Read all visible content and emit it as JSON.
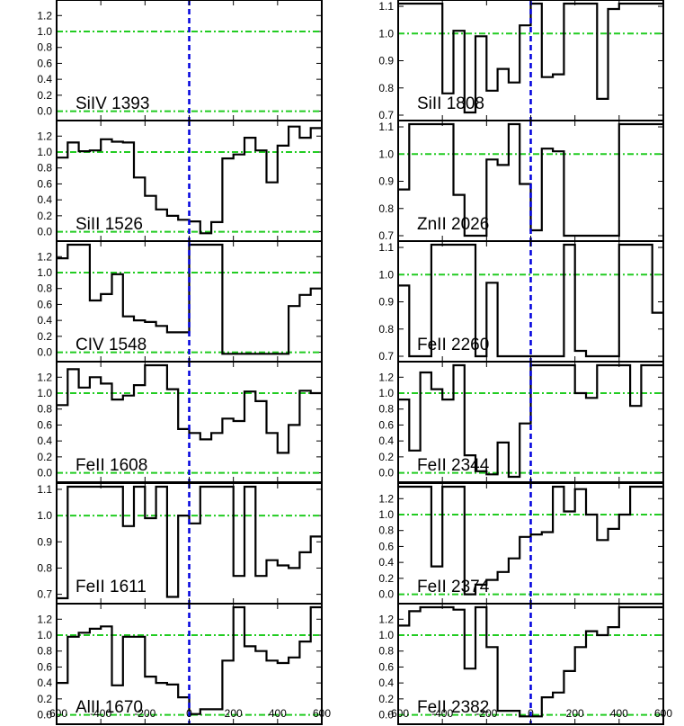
{
  "figure": {
    "x_tick_labels": [
      "-600",
      "-400",
      "-200",
      "0",
      "200",
      "400",
      "600"
    ],
    "colors": {
      "spectrum": "#000000",
      "reference_lines": "#22cc22",
      "zero_velocity_line": "#0000dd",
      "frame": "#000000"
    },
    "line_styles": {
      "reference_lines": "dash-dot",
      "zero_velocity_line": "dashed"
    }
  },
  "chart_data": [
    {
      "type": "line",
      "step": true,
      "label": "SiIV 1393",
      "xlim": [
        -600,
        600
      ],
      "ylim": [
        -0.05,
        1.35
      ],
      "yticks": [
        "0.0",
        "0.2",
        "0.4",
        "0.6",
        "0.8",
        "1.0",
        "1.2"
      ],
      "ref_lines": [
        0.0,
        1.0
      ],
      "x": [],
      "values": []
    },
    {
      "type": "line",
      "step": true,
      "label": "SiII 1526",
      "xlim": [
        -600,
        600
      ],
      "ylim": [
        -0.05,
        1.35
      ],
      "yticks": [
        "0.0",
        "0.2",
        "0.4",
        "0.6",
        "0.8",
        "1.0",
        "1.2"
      ],
      "ref_lines": [
        0.0,
        1.0
      ],
      "x": [
        -600,
        -550,
        -500,
        -450,
        -400,
        -350,
        -300,
        -250,
        -200,
        -150,
        -100,
        -50,
        0,
        50,
        100,
        150,
        200,
        250,
        300,
        350,
        400,
        450,
        500,
        550
      ],
      "values": [
        0.93,
        1.12,
        1.01,
        1.02,
        1.16,
        1.13,
        1.12,
        0.68,
        0.45,
        0.28,
        0.2,
        0.15,
        0.13,
        -0.02,
        0.12,
        0.92,
        0.97,
        1.18,
        1.02,
        0.62,
        1.08,
        1.32,
        1.18,
        1.3
      ]
    },
    {
      "type": "line",
      "step": true,
      "label": "CIV 1548",
      "xlim": [
        -600,
        600
      ],
      "ylim": [
        -0.05,
        1.35
      ],
      "yticks": [
        "0.0",
        "0.2",
        "0.4",
        "0.6",
        "0.8",
        "1.0",
        "1.2"
      ],
      "ref_lines": [
        0.0,
        1.0
      ],
      "x": [
        -600,
        -550,
        -500,
        -450,
        -400,
        -350,
        -300,
        -250,
        -200,
        -150,
        -100,
        -50,
        0,
        50,
        100,
        150,
        200,
        250,
        300,
        350,
        400,
        450,
        500,
        550
      ],
      "values": [
        1.18,
        1.35,
        1.35,
        0.65,
        0.73,
        0.98,
        0.45,
        0.4,
        0.38,
        0.33,
        0.25,
        0.25,
        1.35,
        1.35,
        1.35,
        -0.02,
        -0.02,
        -0.02,
        -0.02,
        -0.02,
        -0.02,
        0.58,
        0.72,
        0.8
      ]
    },
    {
      "type": "line",
      "step": true,
      "label": "FeII 1608",
      "xlim": [
        -600,
        600
      ],
      "ylim": [
        -0.05,
        1.35
      ],
      "yticks": [
        "0.0",
        "0.2",
        "0.4",
        "0.6",
        "0.8",
        "1.0",
        "1.2"
      ],
      "ref_lines": [
        0.0,
        1.0
      ],
      "x": [
        -600,
        -550,
        -500,
        -450,
        -400,
        -350,
        -300,
        -250,
        -200,
        -150,
        -100,
        -50,
        0,
        50,
        100,
        150,
        200,
        250,
        300,
        350,
        400,
        450,
        500,
        550
      ],
      "values": [
        0.85,
        1.3,
        1.07,
        1.2,
        1.12,
        0.92,
        0.97,
        1.1,
        1.35,
        1.35,
        1.05,
        0.55,
        0.5,
        0.42,
        0.5,
        0.68,
        0.65,
        1.02,
        0.9,
        0.5,
        0.25,
        0.6,
        1.03,
        1.0
      ]
    },
    {
      "type": "line",
      "step": true,
      "label": "FeII 1611",
      "xlim": [
        -600,
        600
      ],
      "ylim": [
        0.685,
        1.11
      ],
      "yticks": [
        "0.7",
        "0.8",
        "0.9",
        "1.0",
        "1.1"
      ],
      "ref_lines": [
        1.0
      ],
      "x": [
        -600,
        -550,
        -500,
        -450,
        -400,
        -350,
        -300,
        -250,
        -200,
        -150,
        -100,
        -50,
        0,
        50,
        100,
        150,
        200,
        250,
        300,
        350,
        400,
        450,
        500,
        550
      ],
      "values": [
        0.685,
        1.11,
        1.11,
        1.11,
        1.11,
        1.11,
        0.96,
        1.11,
        0.99,
        1.11,
        0.69,
        1.0,
        0.97,
        1.11,
        1.11,
        1.11,
        0.77,
        1.11,
        0.77,
        0.83,
        0.81,
        0.8,
        0.86,
        0.92
      ]
    },
    {
      "type": "line",
      "step": true,
      "label": "AlII 1670",
      "xlim": [
        -600,
        600
      ],
      "ylim": [
        -0.05,
        1.35
      ],
      "yticks": [
        "0.0",
        "0.2",
        "0.4",
        "0.6",
        "0.8",
        "1.0",
        "1.2"
      ],
      "ref_lines": [
        0.0,
        1.0
      ],
      "x": [
        -600,
        -550,
        -500,
        -450,
        -400,
        -350,
        -300,
        -250,
        -200,
        -150,
        -100,
        -50,
        0,
        50,
        100,
        150,
        200,
        250,
        300,
        350,
        400,
        450,
        500,
        550
      ],
      "values": [
        0.4,
        0.98,
        1.03,
        1.08,
        1.11,
        0.37,
        0.98,
        0.98,
        0.48,
        0.4,
        0.38,
        0.22,
        0.01,
        0.07,
        0.07,
        0.68,
        1.38,
        0.86,
        0.8,
        0.68,
        0.65,
        0.72,
        0.92,
        1.38
      ]
    },
    {
      "type": "line",
      "step": true,
      "label": "SiII 1808",
      "xlim": [
        -600,
        600
      ],
      "ylim": [
        0.7,
        1.11
      ],
      "yticks": [
        "0.7",
        "0.8",
        "0.9",
        "1.0",
        "1.1"
      ],
      "ref_lines": [
        1.0
      ],
      "x": [
        -600,
        -550,
        -500,
        -450,
        -400,
        -350,
        -300,
        -250,
        -200,
        -150,
        -100,
        -50,
        0,
        50,
        100,
        150,
        200,
        250,
        300,
        350,
        400,
        450,
        500,
        550
      ],
      "values": [
        1.11,
        1.11,
        1.11,
        1.11,
        0.78,
        1.01,
        0.71,
        0.99,
        0.79,
        0.87,
        0.82,
        1.03,
        1.11,
        0.84,
        0.85,
        1.11,
        1.11,
        1.11,
        0.76,
        1.09,
        1.11,
        1.11,
        1.11,
        1.11
      ]
    },
    {
      "type": "line",
      "step": true,
      "label": "ZnII 2026",
      "xlim": [
        -600,
        600
      ],
      "ylim": [
        0.7,
        1.11
      ],
      "yticks": [
        "0.7",
        "0.8",
        "0.9",
        "1.0",
        "1.1"
      ],
      "ref_lines": [
        1.0
      ],
      "x": [
        -600,
        -550,
        -500,
        -450,
        -400,
        -350,
        -300,
        -250,
        -200,
        -150,
        -100,
        -50,
        0,
        50,
        100,
        150,
        200,
        250,
        300,
        350,
        400,
        450,
        500,
        550
      ],
      "values": [
        0.87,
        1.11,
        1.11,
        1.11,
        1.11,
        0.85,
        0.7,
        0.7,
        0.98,
        0.96,
        1.11,
        0.89,
        0.72,
        1.02,
        1.01,
        0.7,
        0.7,
        0.7,
        0.7,
        0.7,
        1.11,
        1.11,
        1.11,
        1.11
      ]
    },
    {
      "type": "line",
      "step": true,
      "label": "FeII 2260",
      "xlim": [
        -600,
        600
      ],
      "ylim": [
        0.7,
        1.11
      ],
      "yticks": [
        "0.7",
        "0.8",
        "0.9",
        "1.0",
        "1.1"
      ],
      "ref_lines": [
        1.0
      ],
      "x": [
        -600,
        -550,
        -500,
        -450,
        -400,
        -350,
        -300,
        -250,
        -200,
        -150,
        -100,
        -50,
        0,
        50,
        100,
        150,
        200,
        250,
        300,
        350,
        400,
        450,
        500,
        550
      ],
      "values": [
        0.96,
        0.7,
        0.7,
        1.11,
        1.11,
        1.11,
        1.11,
        0.7,
        0.97,
        0.7,
        0.7,
        0.7,
        0.7,
        0.7,
        0.7,
        1.11,
        0.72,
        0.7,
        0.7,
        0.7,
        1.11,
        1.11,
        1.11,
        0.86
      ]
    },
    {
      "type": "line",
      "step": true,
      "label": "FeII 2344",
      "xlim": [
        -600,
        600
      ],
      "ylim": [
        -0.05,
        1.35
      ],
      "yticks": [
        "0.0",
        "0.2",
        "0.4",
        "0.6",
        "0.8",
        "1.0",
        "1.2"
      ],
      "ref_lines": [
        0.0,
        1.0
      ],
      "x": [
        -600,
        -550,
        -500,
        -450,
        -400,
        -350,
        -300,
        -250,
        -200,
        -150,
        -100,
        -50,
        0,
        50,
        100,
        150,
        200,
        250,
        300,
        350,
        400,
        450,
        500,
        550
      ],
      "values": [
        0.92,
        0.28,
        1.26,
        1.05,
        0.92,
        1.35,
        0.22,
        0.02,
        -0.02,
        0.38,
        -0.05,
        0.62,
        1.35,
        1.35,
        1.35,
        1.35,
        1.0,
        0.94,
        1.35,
        1.35,
        1.35,
        0.84,
        1.35,
        1.35
      ]
    },
    {
      "type": "line",
      "step": true,
      "label": "FeII 2374",
      "xlim": [
        -600,
        600
      ],
      "ylim": [
        -0.05,
        1.35
      ],
      "yticks": [
        "0.0",
        "0.2",
        "0.4",
        "0.6",
        "0.8",
        "1.0",
        "1.2"
      ],
      "ref_lines": [
        0.0,
        1.0
      ],
      "x": [
        -600,
        -550,
        -500,
        -450,
        -400,
        -350,
        -300,
        -250,
        -200,
        -150,
        -100,
        -50,
        0,
        50,
        100,
        150,
        200,
        250,
        300,
        350,
        400,
        450,
        500,
        550
      ],
      "values": [
        1.35,
        1.35,
        1.35,
        0.35,
        1.35,
        1.35,
        0.0,
        0.12,
        0.18,
        0.28,
        0.45,
        0.72,
        0.75,
        0.78,
        1.35,
        1.04,
        1.32,
        1.0,
        0.68,
        0.82,
        1.0,
        1.35,
        1.35,
        1.35
      ]
    },
    {
      "type": "line",
      "step": true,
      "label": "FeII 2382",
      "xlim": [
        -600,
        600
      ],
      "ylim": [
        -0.05,
        1.35
      ],
      "yticks": [
        "0.0",
        "0.2",
        "0.4",
        "0.6",
        "0.8",
        "1.0",
        "1.2"
      ],
      "ref_lines": [
        0.0,
        1.0
      ],
      "x": [
        -600,
        -550,
        -500,
        -450,
        -400,
        -350,
        -300,
        -250,
        -200,
        -150,
        -100,
        -50,
        0,
        50,
        100,
        150,
        200,
        250,
        300,
        350,
        400,
        450,
        500,
        550
      ],
      "values": [
        1.12,
        1.3,
        1.35,
        1.35,
        1.35,
        1.32,
        0.58,
        1.35,
        0.85,
        0.05,
        0.05,
        -0.02,
        -0.02,
        0.22,
        0.28,
        0.55,
        0.85,
        1.05,
        1.0,
        1.1,
        1.35,
        1.35,
        1.35,
        1.35
      ]
    }
  ]
}
